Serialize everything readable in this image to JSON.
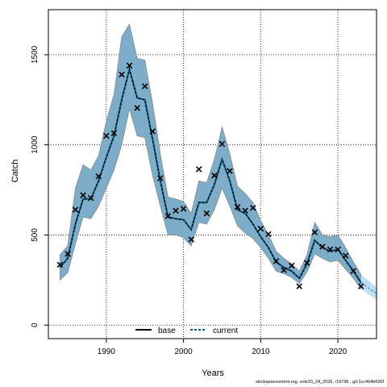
{
  "chart_data": {
    "type": "line",
    "xlabel": "Years",
    "ylabel": "Catch",
    "xlim": [
      1982.5,
      2025
    ],
    "ylim": [
      -75,
      1750
    ],
    "x_ticks": [
      1990,
      2000,
      2010,
      2020
    ],
    "y_ticks": [
      0,
      500,
      1000,
      1500
    ],
    "grid": "dotted",
    "legend_position": "bottom-center",
    "legend": [
      {
        "name": "base",
        "style": "solid",
        "color": "#000000"
      },
      {
        "name": "current",
        "style": "dashed",
        "color": "#005a8c"
      }
    ],
    "colors": {
      "band": "#7eadc9",
      "band_stroke": "#8a8a8a",
      "projection_band": "#bfe0f3",
      "current_line": "#005a8c"
    },
    "years": [
      1984,
      1985,
      1986,
      1987,
      1988,
      1989,
      1990,
      1991,
      1992,
      1993,
      1994,
      1995,
      1996,
      1997,
      1998,
      1999,
      2000,
      2001,
      2002,
      2003,
      2004,
      2005,
      2006,
      2007,
      2008,
      2009,
      2010,
      2011,
      2012,
      2013,
      2014,
      2015,
      2016,
      2017,
      2018,
      2019,
      2020,
      2021,
      2022,
      2023
    ],
    "series": [
      {
        "name": "current",
        "values": [
          320,
          370,
          560,
          700,
          700,
          800,
          930,
          1050,
          1250,
          1420,
          1260,
          1250,
          1030,
          800,
          600,
          590,
          585,
          530,
          680,
          680,
          780,
          920,
          800,
          640,
          620,
          560,
          490,
          430,
          350,
          320,
          300,
          260,
          340,
          470,
          430,
          410,
          420,
          360,
          300,
          235
        ],
        "lower": [
          250,
          290,
          450,
          600,
          590,
          660,
          760,
          860,
          1000,
          1200,
          1050,
          1040,
          830,
          660,
          500,
          500,
          485,
          440,
          570,
          560,
          640,
          760,
          660,
          550,
          510,
          480,
          430,
          370,
          300,
          285,
          265,
          230,
          295,
          395,
          370,
          350,
          360,
          310,
          260,
          200
        ],
        "upper": [
          390,
          440,
          760,
          890,
          860,
          940,
          1130,
          1280,
          1600,
          1670,
          1480,
          1470,
          1230,
          950,
          710,
          700,
          685,
          620,
          800,
          790,
          920,
          1100,
          950,
          770,
          730,
          680,
          580,
          500,
          410,
          370,
          340,
          300,
          390,
          570,
          500,
          490,
          500,
          430,
          350,
          280
        ]
      },
      {
        "name": "observed",
        "values": [
          335,
          395,
          640,
          720,
          705,
          825,
          1050,
          1065,
          1390,
          1440,
          1205,
          1325,
          1075,
          815,
          605,
          635,
          645,
          475,
          865,
          620,
          830,
          1005,
          855,
          655,
          635,
          650,
          535,
          505,
          355,
          305,
          330,
          215,
          345,
          515,
          435,
          420,
          420,
          385,
          300,
          215
        ]
      }
    ],
    "projection": {
      "years": [
        2023,
        2025
      ],
      "values": [
        235,
        175
      ],
      "lower": [
        200,
        140
      ],
      "upper": [
        280,
        210
      ]
    }
  },
  "footer": "stockassessment.org, sole20_24_2026, r19796 , git:1cc464b606f"
}
